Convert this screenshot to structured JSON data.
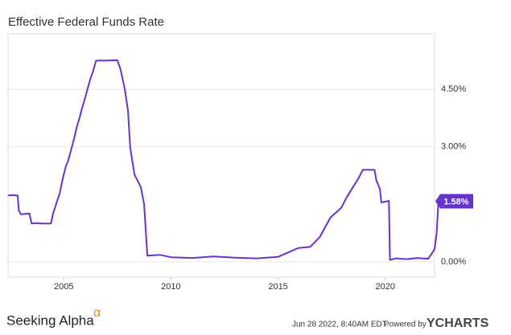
{
  "chart_data": {
    "type": "line",
    "title": "Effective Federal Funds Rate",
    "x": [
      2002.4,
      2002.6,
      2002.85,
      2002.9,
      2003.0,
      2003.4,
      2003.5,
      2003.7,
      2004.0,
      2004.4,
      2004.5,
      2004.6,
      2004.7,
      2004.8,
      2004.95,
      2005.1,
      2005.2,
      2005.35,
      2005.5,
      2005.6,
      2005.75,
      2005.85,
      2006.0,
      2006.1,
      2006.25,
      2006.35,
      2006.5,
      2006.6,
      2007.0,
      2007.5,
      2007.65,
      2007.75,
      2007.85,
      2008.0,
      2008.1,
      2008.3,
      2008.6,
      2008.75,
      2008.9,
      2009.5,
      2010,
      2011,
      2012,
      2013,
      2014,
      2015,
      2015.95,
      2016.5,
      2016.95,
      2017.2,
      2017.45,
      2017.95,
      2018.2,
      2018.45,
      2018.75,
      2018.95,
      2019.5,
      2019.58,
      2019.75,
      2019.82,
      2020.1,
      2020.17,
      2020.22,
      2020.5,
      2021,
      2021.5,
      2022.0,
      2022.15,
      2022.3,
      2022.4,
      2022.48
    ],
    "series": [
      {
        "name": "Effective Federal Funds Rate",
        "color": "#6633cc",
        "values": [
          1.73,
          1.74,
          1.73,
          1.34,
          1.24,
          1.26,
          1.0,
          1.01,
          1.0,
          1.0,
          1.26,
          1.43,
          1.61,
          1.76,
          2.16,
          2.5,
          2.63,
          2.94,
          3.26,
          3.5,
          3.78,
          4.0,
          4.29,
          4.49,
          4.79,
          4.94,
          5.24,
          5.25,
          5.25,
          5.26,
          5.02,
          4.76,
          4.49,
          3.94,
          2.98,
          2.28,
          1.94,
          1.5,
          0.16,
          0.18,
          0.12,
          0.1,
          0.14,
          0.11,
          0.09,
          0.13,
          0.36,
          0.39,
          0.65,
          0.91,
          1.16,
          1.41,
          1.68,
          1.91,
          2.18,
          2.4,
          2.4,
          2.13,
          1.9,
          1.55,
          1.58,
          1.59,
          0.05,
          0.09,
          0.07,
          0.1,
          0.08,
          0.2,
          0.33,
          0.77,
          1.58
        ],
        "value_labels": [
          null,
          null,
          null,
          null,
          null,
          null,
          null,
          null,
          null,
          null,
          null,
          null,
          null,
          null,
          null,
          null,
          null,
          null,
          null,
          null,
          null,
          null,
          null,
          null,
          null,
          null,
          null,
          null,
          null,
          null,
          null,
          null,
          null,
          null,
          null,
          null,
          null,
          null,
          null,
          null,
          null,
          null,
          null,
          null,
          null,
          null,
          null,
          null,
          null,
          null,
          null,
          null,
          null,
          null,
          null,
          null,
          null,
          null,
          null,
          null,
          null,
          null,
          null,
          null,
          null,
          null,
          null,
          null,
          null,
          null,
          "1.58%"
        ]
      }
    ],
    "xlim": [
      2002.4,
      2022.3
    ],
    "xticks": [
      2005,
      2010,
      2015,
      2020
    ],
    "ylim": [
      -0.4,
      5.95
    ],
    "yticks": [
      {
        "value": 0,
        "label": "0.00%"
      },
      {
        "value": 3,
        "label": "3.00%"
      },
      {
        "value": 4.5,
        "label": "4.50%"
      }
    ],
    "grid": true
  },
  "footer": {
    "brand": "Seeking Alpha",
    "brand_mark": "α",
    "timestamp": "Jun 28 2022, 8:40AM EDT.",
    "powered": "Powered by",
    "provider": "YCHARTS"
  }
}
